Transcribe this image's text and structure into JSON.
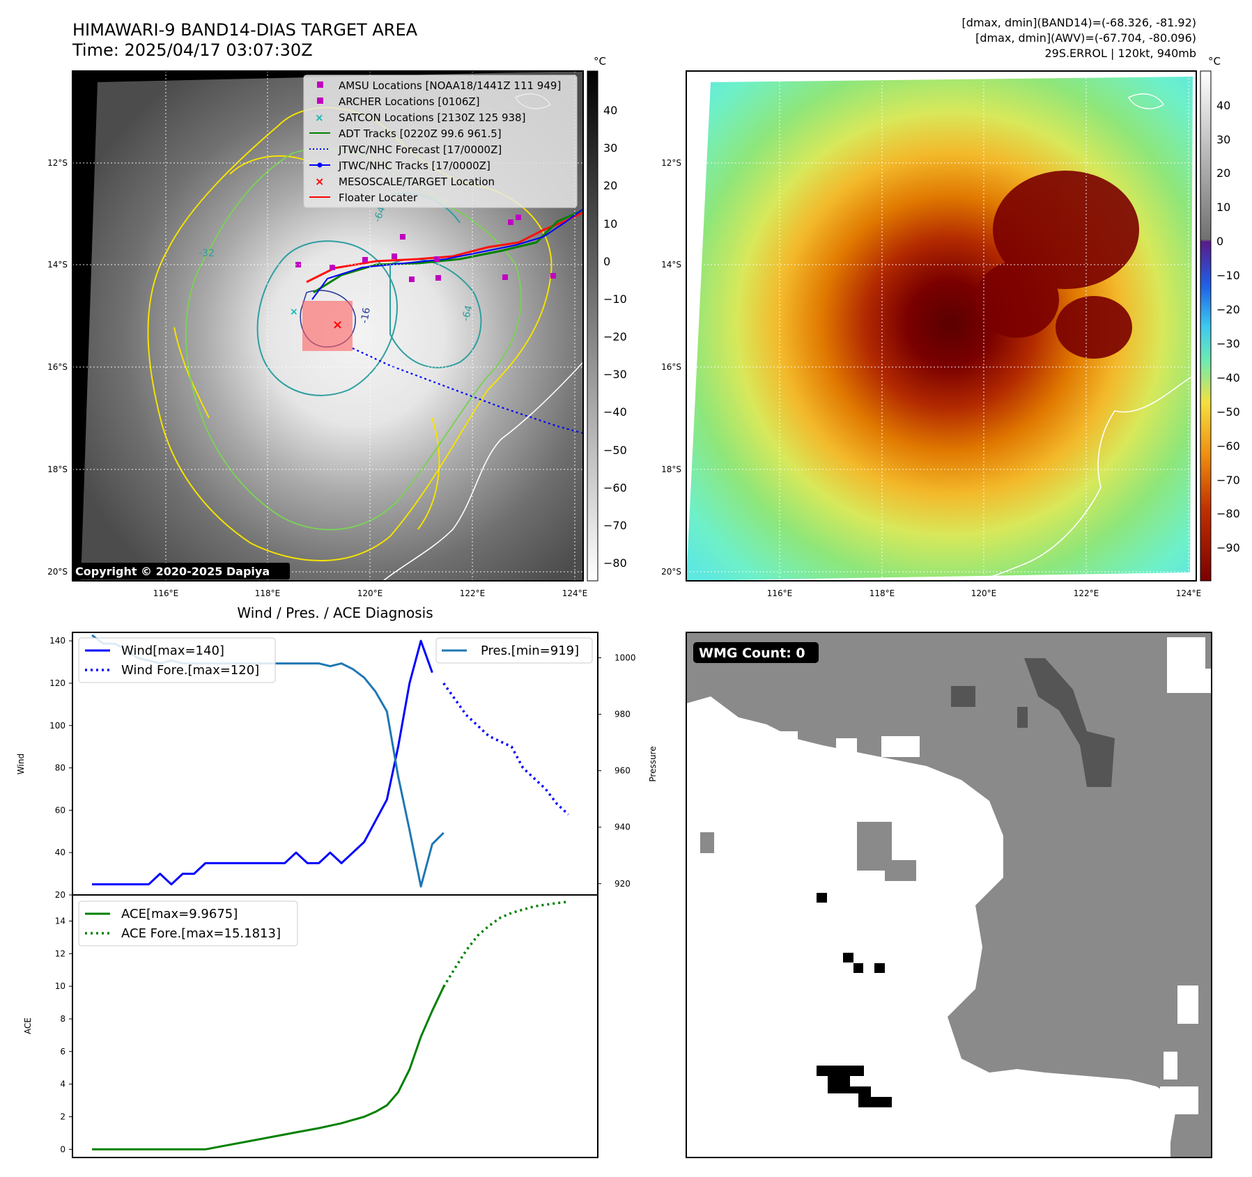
{
  "header": {
    "title_line1": "HIMAWARI-9 BAND14-DIAS TARGET AREA",
    "title_line2": "Time: 2025/04/17 03:07:30Z",
    "stats_line1": "[dmax, dmin](BAND14)=(-68.326, -81.92)",
    "stats_line2": "[dmax, dmin](AWV)=(-67.704, -80.096)",
    "stats_line3": "29S.ERROL | 120kt, 940mb"
  },
  "map_axes": {
    "lat_labels": [
      "12°S",
      "14°S",
      "16°S",
      "18°S",
      "20°S"
    ],
    "lon_labels": [
      "116°E",
      "118°E",
      "120°E",
      "122°E",
      "124°E"
    ]
  },
  "panel_ir": {
    "copyright": "Copyright © 2020-2025 Dapiya",
    "colorbar_unit": "°C",
    "colorbar_ticks": [
      "40",
      "30",
      "20",
      "10",
      "0",
      "−10",
      "−20",
      "−30",
      "−40",
      "−50",
      "−60",
      "−70",
      "−80"
    ],
    "contour_labels": [
      "-64",
      "-64",
      "-16",
      "-32"
    ],
    "legend": [
      {
        "label": "AMSU Locations [NOAA18/1441Z 111 949]",
        "color": "#c000c0",
        "marker": "square"
      },
      {
        "label": "ARCHER Locations [0106Z]",
        "color": "#c000c0",
        "marker": "square"
      },
      {
        "label": "SATCON Locations [2130Z 125 938]",
        "color": "#10b8b8",
        "marker": "x"
      },
      {
        "label": "ADT Tracks [0220Z 99.6 961.5]",
        "color": "#008000",
        "marker": "line"
      },
      {
        "label": "JTWC/NHC Forecast [17/0000Z]",
        "color": "#0000ff",
        "marker": "dotted"
      },
      {
        "label": "JTWC/NHC Tracks [17/0000Z]",
        "color": "#0000ff",
        "marker": "line-dot"
      },
      {
        "label": "MESOSCALE/TARGET Location",
        "color": "#ff0000",
        "marker": "x"
      },
      {
        "label": "Floater Locater",
        "color": "#ff0000",
        "marker": "line"
      }
    ]
  },
  "panel_awv": {
    "colorbar_unit": "°C",
    "colorbar_ticks": [
      "40",
      "30",
      "20",
      "10",
      "0",
      "−10",
      "−20",
      "−30",
      "−40",
      "−50",
      "−60",
      "−70",
      "−80",
      "−90"
    ]
  },
  "panel_wmg": {
    "badge": "WMG Count: 0"
  },
  "chart_data": [
    {
      "type": "line",
      "title": "Wind / Pres. / ACE Diagnosis",
      "xlabel": "",
      "ylabel": "Wind",
      "ylabel_right": "Pressure",
      "ylim": [
        20,
        144
      ],
      "ylim_right": [
        916,
        1009
      ],
      "yticks": [
        20,
        40,
        60,
        80,
        100,
        120,
        140
      ],
      "yticks_right": [
        920,
        940,
        960,
        980,
        1000
      ],
      "x_range": [
        0,
        43
      ],
      "legend_left": [
        "Wind[max=140]",
        "Wind Fore.[max=120]"
      ],
      "legend_right": [
        "Pres.[min=919]"
      ],
      "series": [
        {
          "name": "Wind[max=140]",
          "axis": "left",
          "style": "solid",
          "color": "#0000ff",
          "x": [
            0,
            1,
            2,
            3,
            4,
            5,
            6,
            7,
            8,
            9,
            10,
            11,
            12,
            13,
            14,
            15,
            16,
            17,
            18,
            19,
            20,
            21,
            22,
            23,
            24,
            25,
            26,
            27,
            28,
            29,
            30
          ],
          "values": [
            25,
            25,
            25,
            25,
            25,
            25,
            30,
            25,
            30,
            30,
            35,
            35,
            35,
            35,
            35,
            35,
            35,
            35,
            40,
            35,
            35,
            40,
            35,
            40,
            45,
            55,
            65,
            90,
            120,
            140,
            125
          ]
        },
        {
          "name": "Wind Fore.[max=120]",
          "axis": "left",
          "style": "dotted",
          "color": "#0000ff",
          "x": [
            31,
            33,
            35,
            37,
            38,
            39,
            40,
            41,
            42
          ],
          "values": [
            120,
            105,
            95,
            90,
            80,
            75,
            70,
            63,
            58
          ]
        },
        {
          "name": "Pres.[min=919]",
          "axis": "right",
          "style": "solid",
          "color": "#1f77b4",
          "x": [
            0,
            1,
            2,
            3,
            4,
            5,
            6,
            7,
            8,
            9,
            10,
            11,
            12,
            13,
            14,
            15,
            16,
            17,
            18,
            19,
            20,
            21,
            22,
            23,
            24,
            25,
            26,
            27,
            28,
            29,
            30,
            31
          ],
          "values": [
            1008,
            1005,
            1005,
            1003,
            1000,
            999,
            998,
            999,
            998,
            998,
            998,
            998,
            998,
            998,
            998,
            998,
            998,
            998,
            998,
            998,
            998,
            997,
            998,
            996,
            993,
            988,
            981,
            958,
            939,
            919,
            934,
            938
          ]
        }
      ]
    },
    {
      "type": "line",
      "title": "",
      "xlabel": "",
      "ylabel": "ACE",
      "ylim": [
        -0.5,
        15.6
      ],
      "yticks": [
        0,
        2,
        4,
        6,
        8,
        10,
        12,
        14
      ],
      "x_range": [
        0,
        43
      ],
      "legend_left": [
        "ACE[max=9.9675]",
        "ACE Fore.[max=15.1813]"
      ],
      "series": [
        {
          "name": "ACE[max=9.9675]",
          "style": "solid",
          "color": "#008000",
          "x": [
            0,
            10,
            12,
            14,
            16,
            18,
            20,
            21,
            22,
            23,
            24,
            25,
            26,
            27,
            28,
            29,
            30,
            31
          ],
          "values": [
            0,
            0,
            0.26,
            0.52,
            0.78,
            1.04,
            1.3,
            1.45,
            1.6,
            1.8,
            2.0,
            2.3,
            2.7,
            3.5,
            4.9,
            6.9,
            8.5,
            9.9675
          ]
        },
        {
          "name": "ACE Fore.[max=15.1813]",
          "style": "dotted",
          "color": "#008000",
          "x": [
            31,
            32,
            33,
            34,
            35,
            36,
            37,
            38,
            39,
            40,
            41,
            42
          ],
          "values": [
            9.9675,
            11.1,
            12.2,
            13.1,
            13.7,
            14.2,
            14.5,
            14.7,
            14.9,
            15.0,
            15.1,
            15.1813
          ]
        }
      ]
    }
  ]
}
